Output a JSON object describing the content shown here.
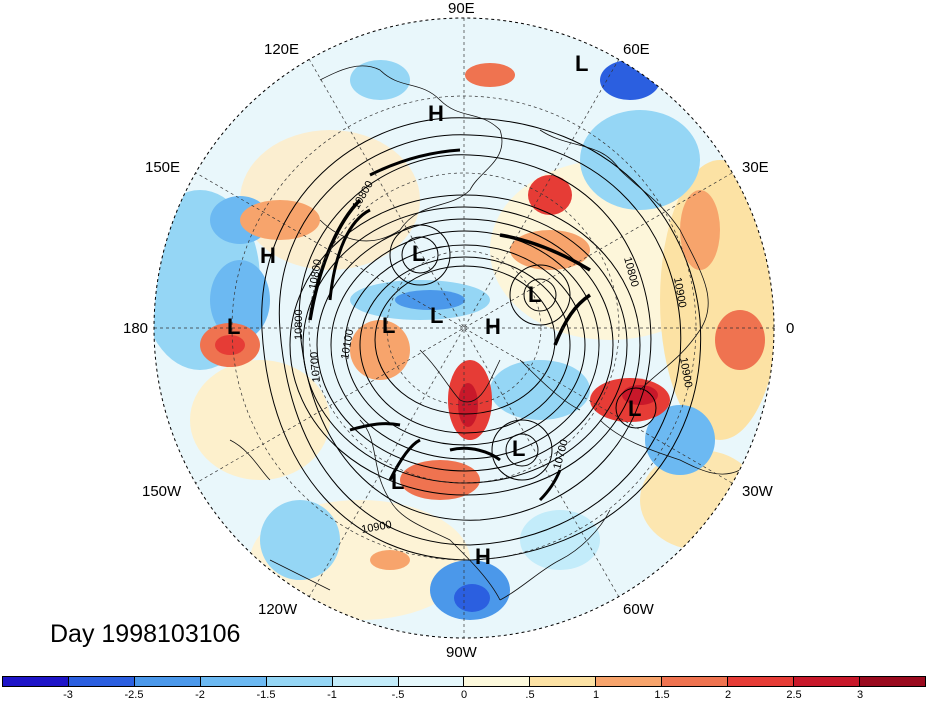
{
  "longitude_labels": [
    "90E",
    "60E",
    "30E",
    "0",
    "30W",
    "60W",
    "90W",
    "120W",
    "150W",
    "180",
    "150E",
    "120E"
  ],
  "pressure_centers": [
    "L",
    "H",
    "H",
    "L",
    "L",
    "L",
    "L",
    "H",
    "L",
    "L",
    "L",
    "L",
    "H"
  ],
  "contour_labels": [
    "10800",
    "10800",
    "10800",
    "10800",
    "10900",
    "10900",
    "10700",
    "10700",
    "10900",
    "10100"
  ],
  "day_label": "Day 1998103106",
  "colorbar": {
    "ticks": [
      "-3",
      "-2.5",
      "-2",
      "-1.5",
      "-1",
      "-.5",
      "0",
      ".5",
      "1",
      "1.5",
      "2",
      "2.5",
      "3"
    ],
    "colors": [
      "#1e14c8",
      "#2b5fe0",
      "#4b98ea",
      "#6cb9f2",
      "#95d6f5",
      "#c3ecfa",
      "#e6f8fc",
      "#fdf9dc",
      "#fce2a4",
      "#f7a46c",
      "#ef7350",
      "#e63c36",
      "#c8182a",
      "#9a0a1e"
    ]
  }
}
